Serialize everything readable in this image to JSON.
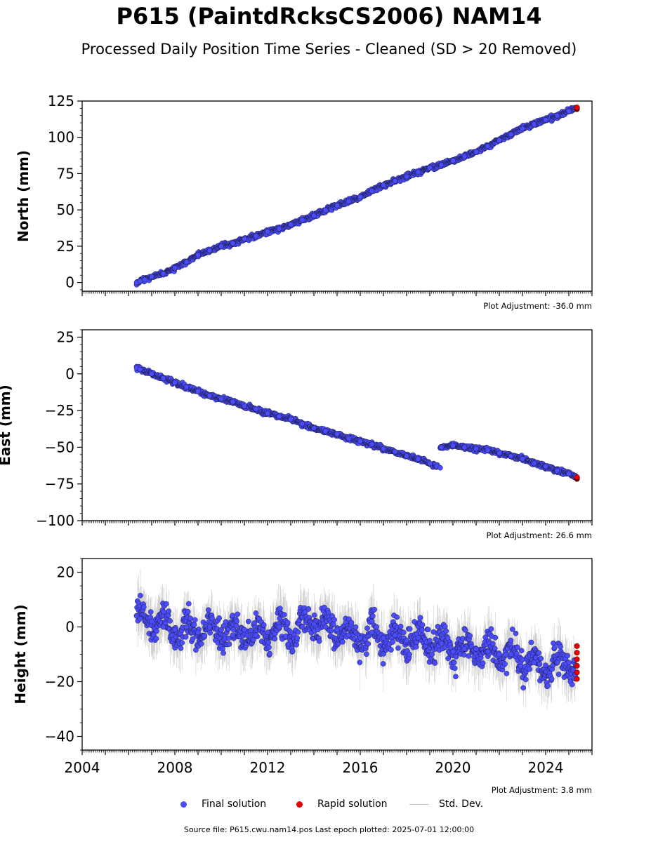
{
  "title": "P615 (PaintdRcksCS2006) NAM14",
  "subtitle": "Processed Daily Position Time Series - Cleaned (SD > 20 Removed)",
  "source_note": "Source file: P615.cwu.nam14.pos  Last epoch plotted: 2025-07-01 12:00:00",
  "legend": {
    "final": "Final solution",
    "rapid": "Rapid solution",
    "stddev": "Std. Dev."
  },
  "colors": {
    "final": "#4c4cff",
    "rapid": "#e60000",
    "edge": "#1a1a40",
    "stddev": "#b4b4b4"
  },
  "chart_data": [
    {
      "type": "scatter",
      "ylabel": "North (mm)",
      "ylim": [
        -6,
        125
      ],
      "yticks": [
        0,
        25,
        50,
        75,
        100,
        125
      ],
      "ytick_labels": [
        "0",
        "25",
        "50",
        "75",
        "100",
        "125"
      ],
      "xlim": [
        2004.0,
        2026.0
      ],
      "adjustment": "Plot Adjustment: -36.0 mm",
      "series": [
        {
          "name": "Final solution",
          "x": [
            2006.35,
            2006.5,
            2006.7,
            2007.0,
            2007.5,
            2008.0,
            2008.5,
            2009.0,
            2009.5,
            2010.0,
            2010.5,
            2011.0,
            2011.5,
            2012.0,
            2012.5,
            2013.0,
            2013.5,
            2014.0,
            2014.5,
            2015.0,
            2015.5,
            2016.0,
            2016.5,
            2017.0,
            2017.5,
            2018.0,
            2018.5,
            2019.0,
            2019.5,
            2020.0,
            2020.5,
            2021.0,
            2021.5,
            2022.0,
            2022.5,
            2023.0,
            2023.5,
            2024.0,
            2024.5,
            2025.0,
            2025.3
          ],
          "y": [
            0,
            1,
            2,
            4,
            6,
            10,
            14,
            19,
            22,
            25,
            27,
            30,
            32,
            35,
            37,
            40,
            43,
            46,
            50,
            53,
            56,
            59,
            63,
            67,
            70,
            73,
            76,
            79,
            81,
            84,
            87,
            90,
            94,
            98,
            102,
            106,
            109,
            112,
            115,
            118,
            120
          ]
        },
        {
          "name": "Rapid solution",
          "x": [
            2025.35
          ],
          "y": [
            120
          ]
        }
      ]
    },
    {
      "type": "scatter",
      "ylabel": "East (mm)",
      "ylim": [
        -100,
        30
      ],
      "yticks": [
        -100,
        -75,
        -50,
        -25,
        0,
        25
      ],
      "ytick_labels": [
        "−100",
        "−75",
        "−50",
        "−25",
        "0",
        "25"
      ],
      "xlim": [
        2004.0,
        2026.0
      ],
      "adjustment": "Plot Adjustment: 26.6 mm",
      "series": [
        {
          "name": "Final solution",
          "x": [
            2006.35,
            2006.5,
            2007.0,
            2007.5,
            2008.0,
            2008.5,
            2009.0,
            2009.5,
            2010.0,
            2010.5,
            2011.0,
            2011.5,
            2012.0,
            2012.5,
            2013.0,
            2013.5,
            2014.0,
            2014.5,
            2015.0,
            2015.5,
            2016.0,
            2016.5,
            2017.0,
            2017.5,
            2018.0,
            2018.5,
            2019.0,
            2019.3,
            2019.45,
            2019.5,
            2020.0,
            2020.5,
            2021.0,
            2021.5,
            2022.0,
            2022.5,
            2023.0,
            2023.5,
            2024.0,
            2024.5,
            2025.0,
            2025.3
          ],
          "y": [
            4,
            3,
            0,
            -3,
            -6,
            -9,
            -12,
            -15,
            -17,
            -19,
            -22,
            -24,
            -27,
            -29,
            -31,
            -34,
            -37,
            -39,
            -41,
            -44,
            -46,
            -48,
            -51,
            -53,
            -56,
            -58,
            -61,
            -63,
            -64,
            -50,
            -49,
            -50,
            -51,
            -52,
            -54,
            -56,
            -58,
            -61,
            -63,
            -66,
            -68,
            -70
          ]
        },
        {
          "name": "Rapid solution",
          "x": [
            2025.35
          ],
          "y": [
            -71
          ]
        }
      ]
    },
    {
      "type": "scatter",
      "ylabel": "Height (mm)",
      "ylim": [
        -45,
        25
      ],
      "yticks": [
        -40,
        -20,
        0,
        20
      ],
      "ytick_labels": [
        "−40",
        "−20",
        "0",
        "20"
      ],
      "xlim": [
        2004.0,
        2026.0
      ],
      "xticks": [
        2004,
        2008,
        2012,
        2016,
        2020,
        2024
      ],
      "xtick_labels": [
        "2004",
        "2008",
        "2012",
        "2016",
        "2020",
        "2024"
      ],
      "adjustment": "Plot Adjustment: 3.8 mm",
      "series": [
        {
          "name": "Final solution",
          "x": [
            2006.35,
            2006.5,
            2007.0,
            2007.5,
            2008.0,
            2008.5,
            2009.0,
            2009.5,
            2010.0,
            2010.5,
            2011.0,
            2011.5,
            2012.0,
            2012.5,
            2013.0,
            2013.5,
            2014.0,
            2014.5,
            2015.0,
            2015.5,
            2016.0,
            2016.5,
            2017.0,
            2017.5,
            2018.0,
            2018.5,
            2019.0,
            2019.5,
            2020.0,
            2020.5,
            2021.0,
            2021.5,
            2022.0,
            2022.5,
            2023.0,
            2023.5,
            2024.0,
            2024.5,
            2025.0,
            2025.3
          ],
          "y": [
            4,
            3,
            2,
            0,
            -1,
            0,
            -2,
            0,
            -1,
            -3,
            -1,
            -3,
            -2,
            0,
            -2,
            0,
            1,
            0,
            -1,
            -3,
            -4,
            -2,
            -4,
            -3,
            -5,
            -4,
            -5,
            -6,
            -9,
            -8,
            -8,
            -9,
            -10,
            -10,
            -12,
            -13,
            -14,
            -13,
            -13,
            -14
          ]
        },
        {
          "name": "Rapid solution",
          "x": [
            2025.35
          ],
          "y": [
            -13
          ]
        }
      ]
    }
  ]
}
